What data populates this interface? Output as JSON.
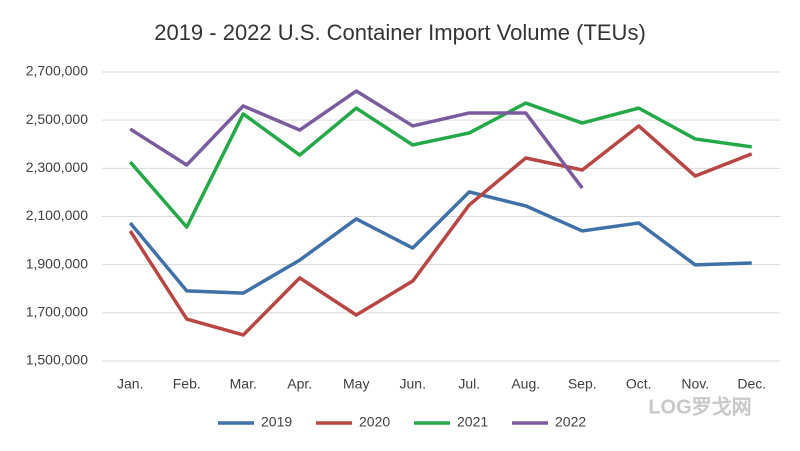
{
  "chart_data": {
    "type": "line",
    "title": "2019 - 2022 U.S. Container Import Volume (TEUs)",
    "categories": [
      "Jan.",
      "Feb.",
      "Mar.",
      "Apr.",
      "May",
      "Jun.",
      "Jul.",
      "Aug.",
      "Sep.",
      "Oct.",
      "Nov.",
      "Dec."
    ],
    "series": [
      {
        "name": "2019",
        "color": "#4070a8",
        "values": [
          2073000,
          1791000,
          1782000,
          1919000,
          2090000,
          1969000,
          2202000,
          2144000,
          2040000,
          2073000,
          1899000,
          1907000
        ]
      },
      {
        "name": "2020",
        "color": "#b84643",
        "values": [
          2040000,
          1674000,
          1608000,
          1845000,
          1691000,
          1832000,
          2148000,
          2343000,
          2293000,
          2476000,
          2268000,
          2360000
        ]
      },
      {
        "name": "2021",
        "color": "#25a847",
        "values": [
          2326000,
          2056000,
          2526000,
          2355000,
          2550000,
          2397000,
          2447000,
          2571000,
          2488000,
          2550000,
          2422000,
          2389000
        ]
      },
      {
        "name": "2022",
        "color": "#7a5c9e",
        "values": [
          2463000,
          2314000,
          2559000,
          2459000,
          2621000,
          2476000,
          2530000,
          2530000,
          2218000,
          null,
          null,
          null
        ]
      }
    ],
    "ylim": [
      1500000,
      2700000
    ],
    "yticks": [
      {
        "value": 1500000,
        "label": "1,500,000"
      },
      {
        "value": 1700000,
        "label": "1,700,000"
      },
      {
        "value": 1900000,
        "label": "1,900,000"
      },
      {
        "value": 2100000,
        "label": "2,100,000"
      },
      {
        "value": 2300000,
        "label": "2,300,000"
      },
      {
        "value": 2500000,
        "label": "2,500,000"
      },
      {
        "value": 2700000,
        "label": "2,700,000"
      }
    ],
    "grid": true,
    "legend": "bottom"
  },
  "watermark": "LOG罗戈网"
}
